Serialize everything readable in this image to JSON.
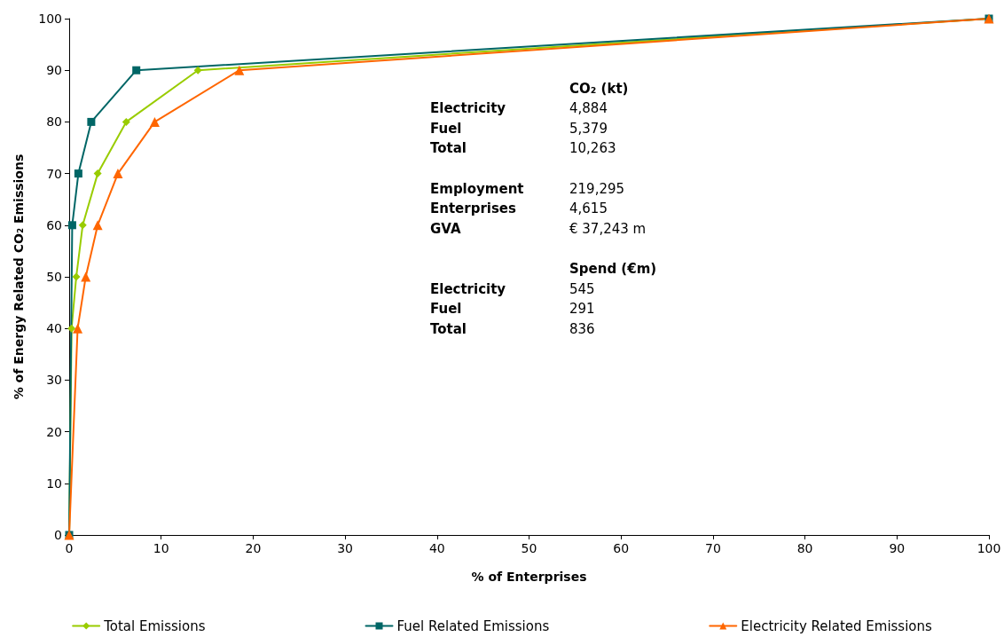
{
  "chart_data": {
    "type": "line",
    "xlabel": "% of Enterprises",
    "ylabel": "% of Energy Related CO₂ Emissions",
    "xlim": [
      0,
      100
    ],
    "xticks": [
      0,
      10,
      20,
      30,
      40,
      50,
      60,
      70,
      80,
      90,
      100
    ],
    "ylim": [
      0,
      100
    ],
    "yticks": [
      0,
      10,
      20,
      30,
      40,
      50,
      60,
      70,
      80,
      90,
      100
    ],
    "grid": false,
    "legend": "bottom",
    "line_style": "solid",
    "series": [
      {
        "name": "Total Emissions",
        "color": "#99cc00",
        "marker": "diamond",
        "x": [
          0,
          0.26,
          0.77,
          1.47,
          3.1,
          6.2,
          14.0,
          100
        ],
        "values": [
          0,
          40,
          50,
          60,
          70,
          80,
          90,
          100
        ]
      },
      {
        "name": "Fuel Related Emissions",
        "color": "#006666",
        "marker": "square",
        "x": [
          0,
          0.33,
          1.0,
          2.4,
          7.3,
          100
        ],
        "values": [
          0,
          60,
          70,
          80,
          90,
          100
        ]
      },
      {
        "name": "Electricity Related Emissions",
        "color": "#ff6600",
        "marker": "triangle",
        "x": [
          0,
          0.92,
          1.8,
          3.1,
          5.3,
          9.3,
          18.5,
          100
        ],
        "values": [
          0,
          40,
          50,
          60,
          70,
          80,
          90,
          100
        ]
      }
    ],
    "annotations": [
      "CO₂ (kt)",
      "Electricity",
      "4,884",
      "Fuel",
      "5,379",
      "Total",
      "10,263",
      "Employment",
      "219,295",
      "Enterprises",
      "4,615",
      "GVA",
      "€ 37,243 m",
      "Spend (€m)",
      "Electricity",
      "545",
      "Fuel",
      "291",
      "Total",
      "836"
    ]
  }
}
